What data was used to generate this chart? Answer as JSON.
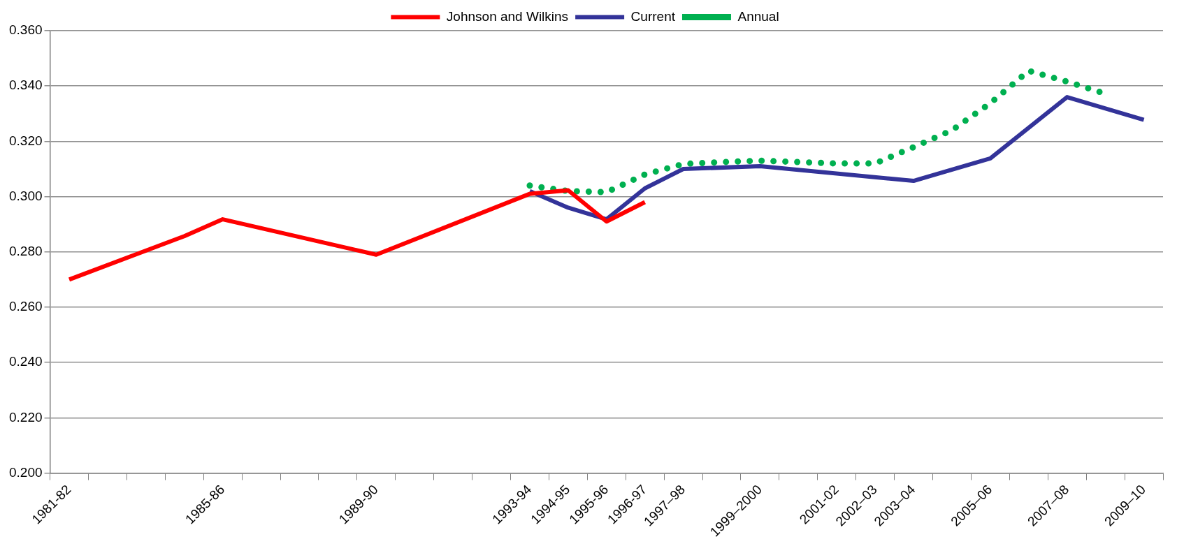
{
  "chart_data": {
    "type": "line",
    "categories": [
      "1981-82",
      null,
      null,
      null,
      "1985-86",
      null,
      null,
      null,
      "1989-90",
      null,
      null,
      null,
      "1993-94",
      "1994-95",
      "1995-96",
      "1996-97",
      "1997–98",
      null,
      "1999–2000",
      null,
      "2001-02",
      "2002–03",
      "2003–04",
      null,
      "2005–06",
      null,
      "2007–08",
      null,
      "2009–10"
    ],
    "series": [
      {
        "name": "Johnson and Wilkins",
        "color": "#ff0000",
        "line_style": "solid",
        "values": [
          0.27,
          null,
          null,
          0.2857,
          0.2918,
          null,
          null,
          null,
          0.279,
          null,
          null,
          null,
          0.301,
          0.3023,
          0.291,
          0.298,
          null,
          null,
          null,
          null,
          null,
          null,
          null,
          null,
          null,
          null,
          null,
          null,
          null
        ]
      },
      {
        "name": "Current",
        "color": "#333399",
        "line_style": "solid",
        "values": [
          null,
          null,
          null,
          null,
          null,
          null,
          null,
          null,
          null,
          null,
          null,
          null,
          0.302,
          0.296,
          0.2918,
          0.303,
          0.31,
          null,
          0.311,
          null,
          null,
          null,
          0.3057,
          null,
          0.3138,
          null,
          0.336,
          null,
          0.3278
        ]
      },
      {
        "name": "Annual",
        "color": "#00b050",
        "line_style": "dotted",
        "values": [
          null,
          null,
          null,
          null,
          null,
          null,
          null,
          null,
          null,
          null,
          null,
          null,
          0.304,
          0.302,
          0.3016,
          0.308,
          0.3118,
          0.3125,
          0.313,
          0.3125,
          0.312,
          0.312,
          0.3179,
          0.324,
          0.3338,
          0.3455,
          0.3416,
          0.3372,
          null
        ]
      }
    ],
    "ylim": [
      0.2,
      0.36
    ],
    "yticks": [
      {
        "value": 0.2,
        "label": "0.200"
      },
      {
        "value": 0.22,
        "label": "0.220"
      },
      {
        "value": 0.24,
        "label": "0.240"
      },
      {
        "value": 0.26,
        "label": "0.260"
      },
      {
        "value": 0.28,
        "label": "0.280"
      },
      {
        "value": 0.3,
        "label": "0.300"
      },
      {
        "value": 0.32,
        "label": "0.320"
      },
      {
        "value": 0.34,
        "label": "0.340"
      },
      {
        "value": 0.36,
        "label": "0.360"
      }
    ],
    "grid": "y",
    "legend": "top",
    "marker": "none"
  }
}
